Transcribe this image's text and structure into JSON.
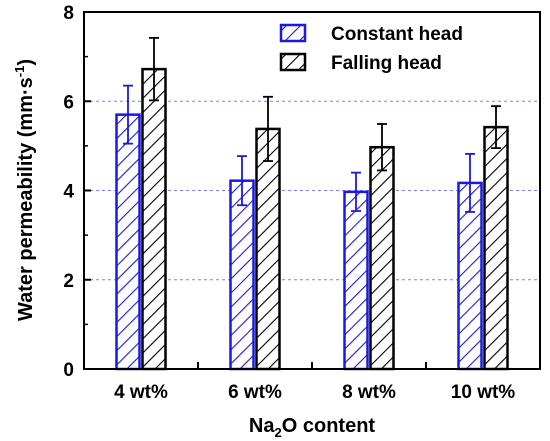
{
  "chart_data": {
    "type": "bar",
    "categories": [
      "4 wt%",
      "6 wt%",
      "8 wt%",
      "10 wt%"
    ],
    "series": [
      {
        "name": "Constant head",
        "color": "#1a1adc",
        "values": [
          5.7,
          4.22,
          3.97,
          4.17
        ],
        "errors": [
          0.65,
          0.55,
          0.43,
          0.65
        ]
      },
      {
        "name": "Falling head",
        "color": "#000000",
        "values": [
          6.72,
          5.38,
          4.97,
          5.42
        ],
        "errors": [
          0.7,
          0.72,
          0.52,
          0.47
        ]
      }
    ],
    "ylim": [
      0,
      8
    ],
    "yticks": [
      "0",
      "2",
      "4",
      "6",
      "8"
    ],
    "ylabel_prefix": "Water permeability (mm·s",
    "ylabel_sup": "-1",
    "ylabel_suffix": ")",
    "xlabel_prefix": "Na",
    "xlabel_sub": "2",
    "xlabel_suffix": "O content",
    "grid": "horizontal dashed at 2, 4, 6",
    "legend_position": "top-right",
    "hatch": "diagonal"
  }
}
